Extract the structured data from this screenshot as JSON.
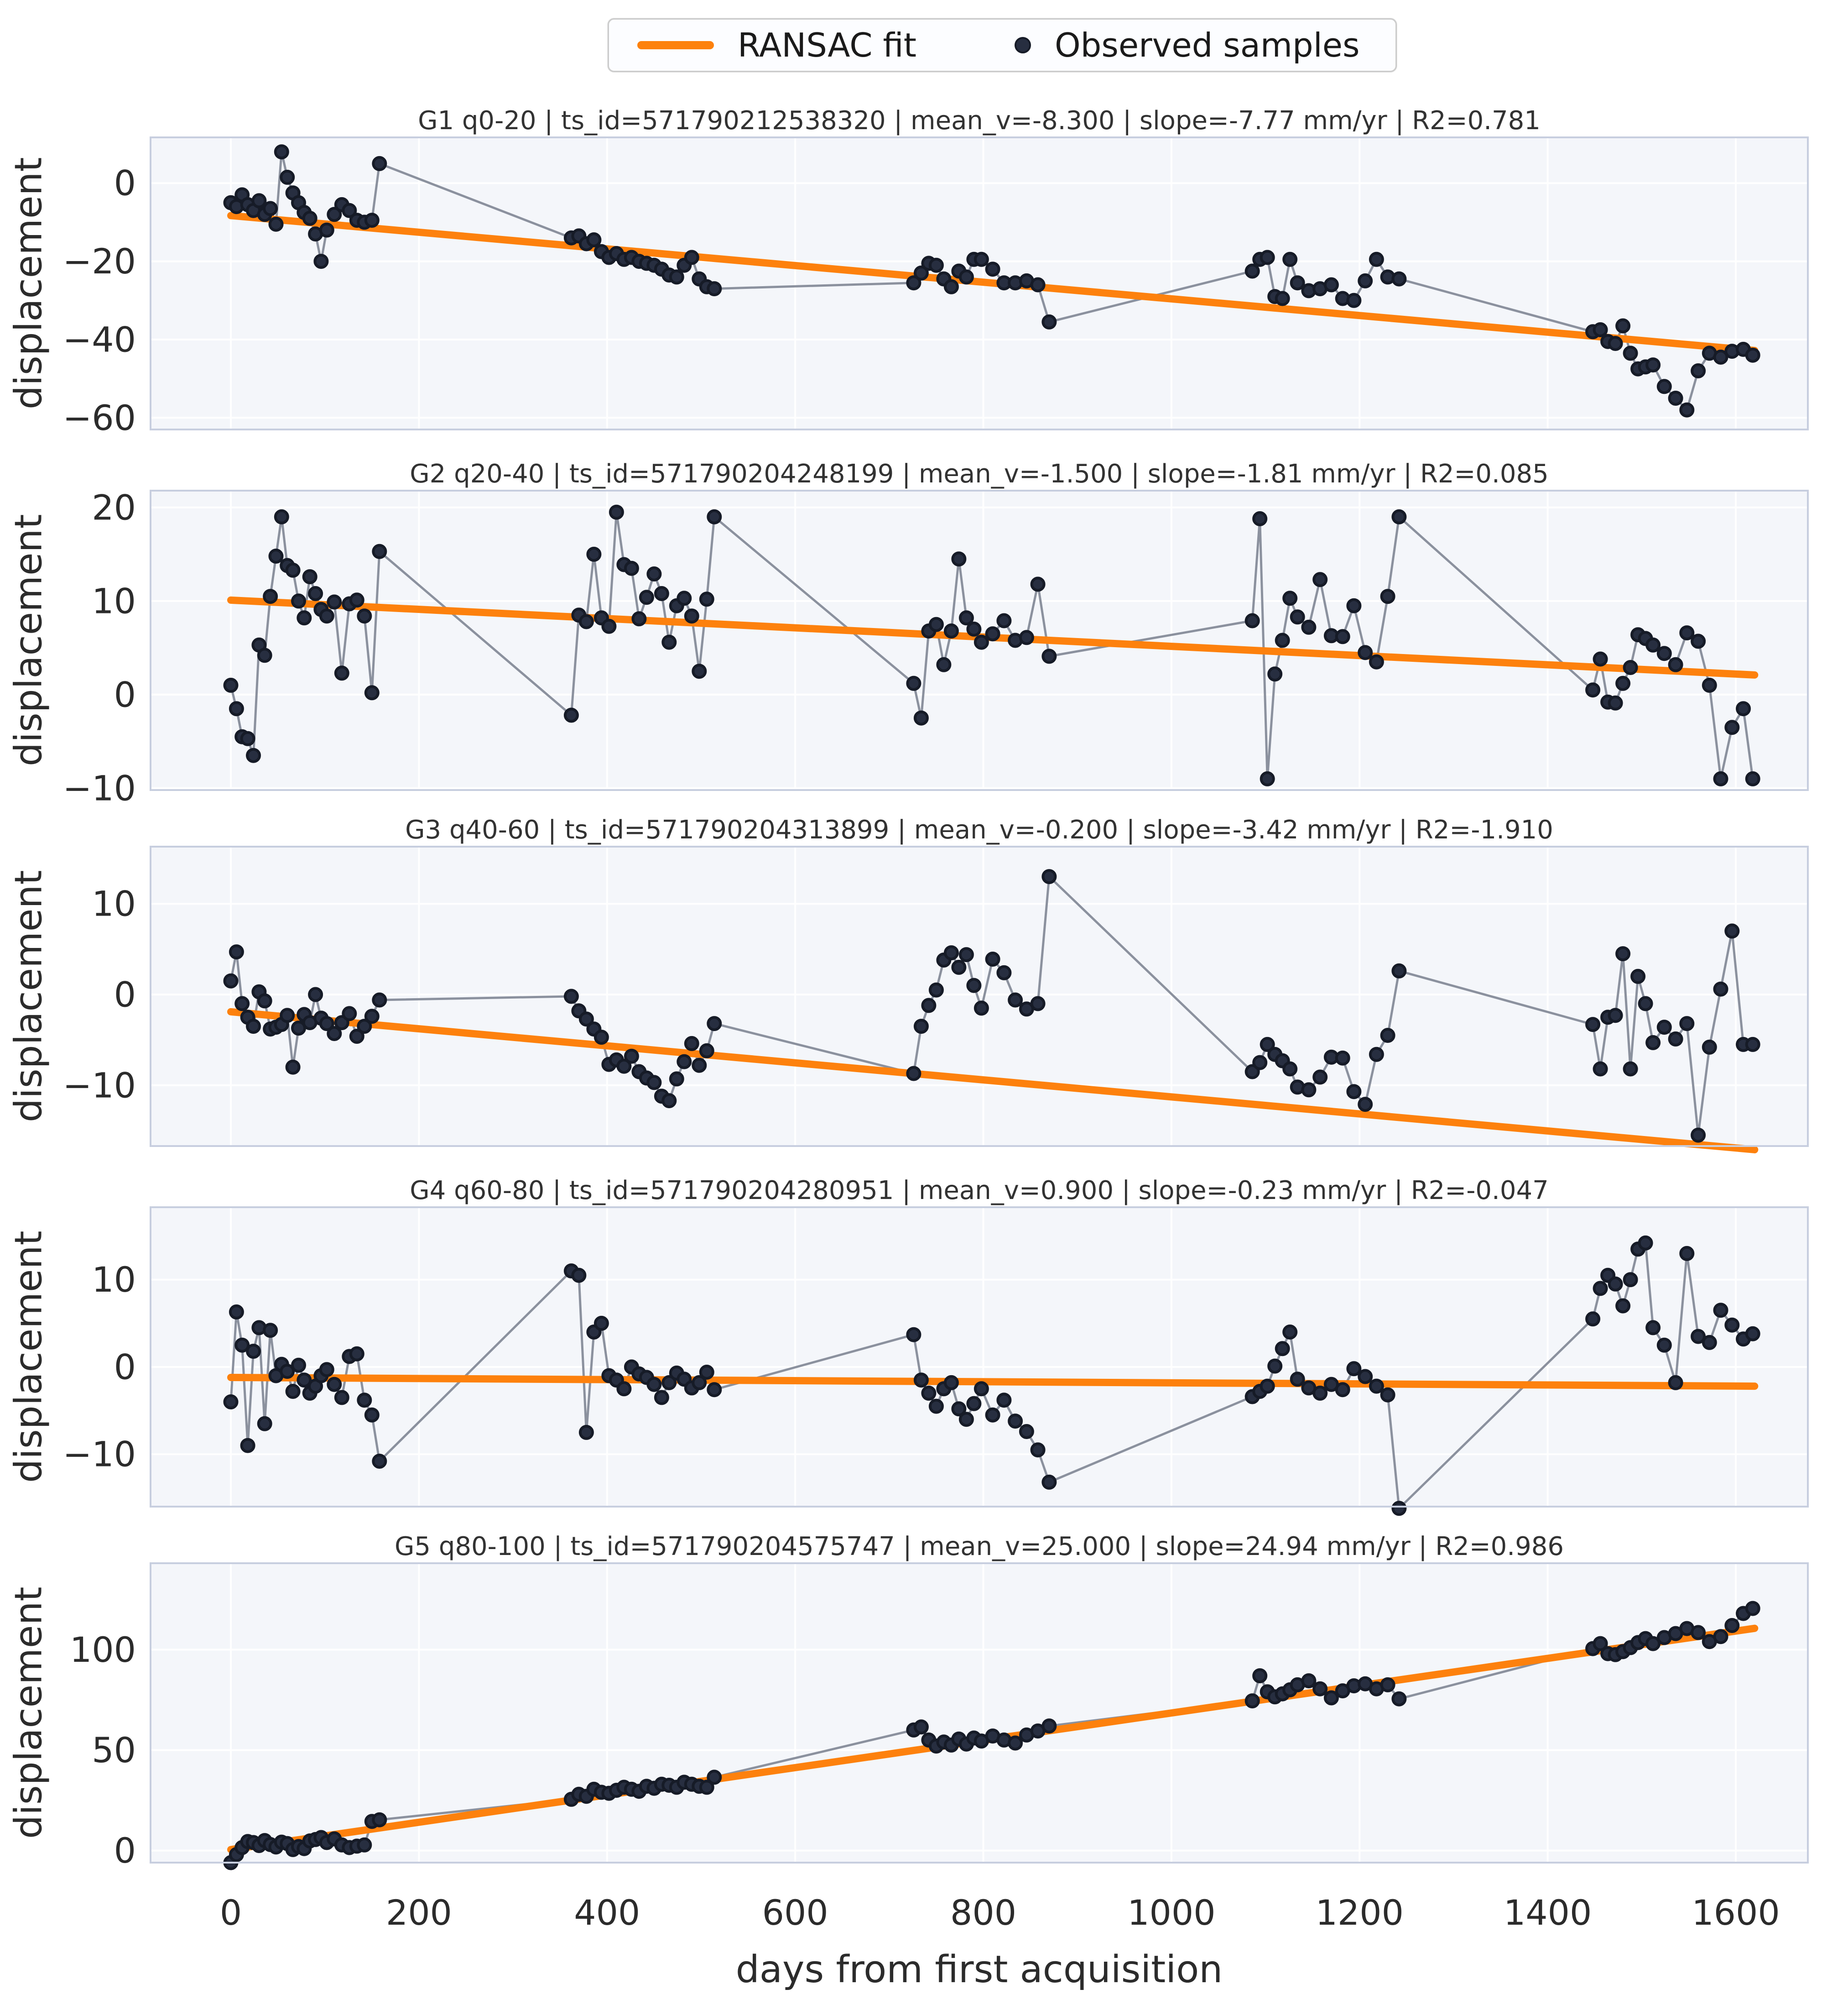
{
  "legend": {
    "items": [
      {
        "label": "RANSAC fit",
        "type": "line",
        "color": "#fd810d"
      },
      {
        "label": "Observed samples",
        "type": "dot",
        "color": "#272e40"
      }
    ]
  },
  "colors": {
    "ransac_line": "#fd810d",
    "marker_fill": "#272e40",
    "marker_edge": "#161b27",
    "connector_line": "#8b919e",
    "plot_background": "#f4f6fa",
    "grid": "#ffffff",
    "spine": "#c7cedf",
    "text": "#2b2b2b"
  },
  "chart_data": {
    "type": "scatter",
    "xlabel": "days from first acquisition",
    "ylabel": "displacement",
    "x_ticks": [
      0,
      200,
      400,
      600,
      800,
      1000,
      1200,
      1400,
      1600
    ],
    "xlim": [
      -85,
      1677
    ],
    "grid": true,
    "legend_position": "top-center",
    "days": [
      0,
      6,
      12,
      18,
      24,
      30,
      36,
      42,
      48,
      54,
      60,
      66,
      72,
      78,
      84,
      90,
      96,
      102,
      110,
      118,
      126,
      134,
      142,
      150,
      158,
      362,
      370,
      378,
      386,
      394,
      402,
      410,
      418,
      426,
      434,
      442,
      450,
      458,
      466,
      474,
      482,
      490,
      498,
      506,
      514,
      726,
      734,
      742,
      750,
      758,
      766,
      774,
      782,
      790,
      798,
      810,
      822,
      834,
      846,
      858,
      870,
      1086,
      1094,
      1102,
      1110,
      1118,
      1126,
      1134,
      1146,
      1158,
      1170,
      1182,
      1194,
      1206,
      1218,
      1230,
      1242,
      1448,
      1456,
      1464,
      1472,
      1480,
      1488,
      1496,
      1504,
      1512,
      1524,
      1536,
      1548,
      1560,
      1572,
      1584,
      1596,
      1608,
      1618
    ],
    "panels": [
      {
        "title": "G1 q0-20 | ts_id=571790212538320 | mean_v=-8.300 | slope=-7.77 mm/yr | R2=0.781",
        "mean_v": -8.3,
        "slope_mm_yr": -7.77,
        "r2": 0.781,
        "y_ticks": [
          0,
          -20,
          -40,
          -60
        ],
        "ylim": [
          -63,
          11.7
        ],
        "ransac": {
          "x": [
            0,
            1620
          ],
          "y": [
            -8.3,
            -42.8
          ]
        },
        "values": [
          -5,
          -6,
          -3,
          -5.5,
          -7,
          -4.5,
          -8,
          -6.5,
          -10.5,
          8,
          1.5,
          -2.5,
          -5,
          -7.5,
          -9,
          -13,
          -20,
          -12,
          -8,
          -5.5,
          -7,
          -9.5,
          -10,
          -9.5,
          5,
          -14,
          -13.5,
          -15.5,
          -14.5,
          -17.5,
          -19,
          -18,
          -19.5,
          -19,
          -20,
          -20.5,
          -21,
          -22,
          -23.5,
          -24,
          -21,
          -19,
          -24.5,
          -26.5,
          -27,
          -25.5,
          -23,
          -20.5,
          -21,
          -24.5,
          -26.5,
          -22.5,
          -24,
          -19.5,
          -19.5,
          -22,
          -25.5,
          -25.5,
          -25,
          -26,
          -35.5,
          -22.5,
          -19.5,
          -19,
          -29,
          -29.5,
          -19.5,
          -25.5,
          -27.5,
          -27,
          -26,
          -29.5,
          -30,
          -25,
          -19.5,
          -24,
          -24.5,
          -38,
          -37.5,
          -40.5,
          -41,
          -36.5,
          -43.5,
          -47.5,
          -47,
          -46.5,
          -52,
          -55,
          -58,
          -48,
          -43.5,
          -44.5,
          -43,
          -42.5,
          -44
        ]
      },
      {
        "title": "G2 q20-40 | ts_id=571790204248199 | mean_v=-1.500 | slope=-1.81 mm/yr | R2=0.085",
        "mean_v": -1.5,
        "slope_mm_yr": -1.81,
        "r2": 0.085,
        "y_ticks": [
          20,
          10,
          0,
          -10
        ],
        "ylim": [
          -10.2,
          21.8
        ],
        "ransac": {
          "x": [
            0,
            1620
          ],
          "y": [
            10.1,
            2.1
          ]
        },
        "values": [
          1,
          -1.5,
          -4.5,
          -4.7,
          -6.5,
          5.3,
          4.2,
          10.5,
          14.8,
          19,
          13.8,
          13.3,
          10,
          8.2,
          12.6,
          10.8,
          9.1,
          8.4,
          9.9,
          2.3,
          9.7,
          10.1,
          8.4,
          0.2,
          15.3,
          -2.2,
          8.5,
          7.8,
          15,
          8.2,
          7.3,
          19.5,
          13.9,
          13.5,
          8.1,
          10.4,
          12.9,
          10.8,
          5.6,
          9.5,
          10.3,
          8.4,
          2.5,
          10.2,
          19,
          1.2,
          -2.5,
          6.8,
          7.5,
          3.2,
          6.8,
          14.5,
          8.2,
          7.0,
          5.6,
          6.5,
          7.9,
          5.8,
          6.1,
          11.8,
          4.1,
          7.9,
          18.8,
          -9,
          2.2,
          5.8,
          10.3,
          8.3,
          7.2,
          12.3,
          6.3,
          6.2,
          9.5,
          4.5,
          3.5,
          10.5,
          19,
          0.5,
          3.8,
          -0.8,
          -0.9,
          1.2,
          2.9,
          6.4,
          6.0,
          5.3,
          4.4,
          3.2,
          6.6,
          5.7,
          1.0,
          -9,
          -3.5,
          -1.5,
          -9
        ]
      },
      {
        "title": "G3 q40-60 | ts_id=571790204313899 | mean_v=-0.200 | slope=-3.42 mm/yr | R2=-1.910",
        "mean_v": -0.2,
        "slope_mm_yr": -3.42,
        "r2": -1.91,
        "y_ticks": [
          10,
          0,
          -10
        ],
        "ylim": [
          -16.7,
          16.3
        ],
        "ransac": {
          "x": [
            0,
            1620
          ],
          "y": [
            -1.9,
            -17.1
          ]
        },
        "values": [
          1.5,
          4.7,
          -1,
          -2.5,
          -3.5,
          0.3,
          -0.7,
          -3.8,
          -3.6,
          -3.3,
          -2.3,
          -8,
          -3.7,
          -2.2,
          -3.1,
          0.0,
          -2.6,
          -3.2,
          -4.3,
          -3.1,
          -2.1,
          -4.6,
          -3.5,
          -2.4,
          -0.6,
          -0.2,
          -1.8,
          -2.7,
          -3.8,
          -4.7,
          -7.7,
          -7.2,
          -7.9,
          -6.8,
          -8.5,
          -9.2,
          -9.7,
          -11.2,
          -11.7,
          -9.3,
          -7.4,
          -5.4,
          -7.8,
          -6.2,
          -3.2,
          -8.7,
          -3.5,
          -1.2,
          0.5,
          3.8,
          4.6,
          3.0,
          4.4,
          1.0,
          -1.5,
          3.9,
          2.4,
          -0.6,
          -1.6,
          -1.0,
          13.0,
          -8.5,
          -7.5,
          -5.5,
          -6.6,
          -7.3,
          -8.2,
          -10.2,
          -10.5,
          -9.1,
          -6.9,
          -7.0,
          -10.7,
          -12.1,
          -6.6,
          -4.5,
          2.6,
          -3.3,
          -8.2,
          -2.5,
          -2.3,
          4.5,
          -8.2,
          2.0,
          -1.0,
          -5.3,
          -3.6,
          -4.9,
          -3.2,
          -15.5,
          -5.8,
          0.6,
          7.0,
          -5.5,
          -5.5
        ]
      },
      {
        "title": "G4 q60-80 | ts_id=571790204280951 | mean_v=0.900 | slope=-0.23 mm/yr | R2=-0.047",
        "mean_v": 0.9,
        "slope_mm_yr": -0.23,
        "r2": -0.047,
        "y_ticks": [
          10,
          0,
          -10
        ],
        "ylim": [
          -16.0,
          18.3
        ],
        "ransac": {
          "x": [
            0,
            1620
          ],
          "y": [
            -1.2,
            -2.2
          ]
        },
        "values": [
          -4,
          6.3,
          2.5,
          -9,
          1.8,
          4.5,
          -6.5,
          4.2,
          -1,
          0.3,
          -0.5,
          -2.8,
          0.2,
          -1.5,
          -3,
          -2.2,
          -1,
          -0.3,
          -2,
          -3.5,
          1.2,
          1.5,
          -3.8,
          -5.5,
          -10.8,
          11,
          10.5,
          -7.5,
          4,
          5,
          -1,
          -1.5,
          -2.5,
          0,
          -0.8,
          -1.2,
          -2,
          -3.5,
          -1.8,
          -0.7,
          -1.4,
          -2.4,
          -1.8,
          -0.6,
          -2.6,
          3.7,
          -1.5,
          -3,
          -4.5,
          -2.5,
          -1.8,
          -4.8,
          -6,
          -4.2,
          -2.5,
          -5.5,
          -3.8,
          -6.2,
          -7.4,
          -9.5,
          -13.2,
          -3.4,
          -2.8,
          -2.2,
          0.1,
          2.1,
          4.0,
          -1.4,
          -2.4,
          -3.0,
          -2.0,
          -2.6,
          -0.2,
          -1.1,
          -2.2,
          -3.2,
          -16.2,
          5.5,
          9.0,
          10.5,
          9.5,
          7.0,
          10.0,
          13.5,
          14.2,
          4.5,
          2.5,
          -1.8,
          13.0,
          3.5,
          2.8,
          6.5,
          4.8,
          3.2,
          3.8
        ]
      },
      {
        "title": "G5 q80-100 | ts_id=571790204575747 | mean_v=25.000 | slope=24.94 mm/yr | R2=0.986",
        "mean_v": 25.0,
        "slope_mm_yr": 24.94,
        "r2": 0.986,
        "y_ticks": [
          100,
          50,
          0
        ],
        "ylim": [
          -6,
          143
        ],
        "ransac": {
          "x": [
            0,
            1620
          ],
          "y": [
            0.5,
            110.6
          ]
        },
        "values": [
          -6,
          -2,
          1.5,
          4.5,
          4.0,
          2.5,
          5.0,
          3.0,
          1.8,
          4.2,
          3.5,
          0.5,
          2.0,
          1.0,
          4.8,
          5.5,
          6.5,
          4.0,
          5.8,
          2.8,
          1.5,
          2.2,
          2.8,
          14.5,
          15.3,
          25.5,
          28,
          27,
          30.5,
          29,
          28.5,
          30,
          31.5,
          30.5,
          29.5,
          32,
          31,
          33,
          32.5,
          31.5,
          34,
          33,
          32,
          31.5,
          36.5,
          60,
          61.5,
          55,
          52,
          54,
          52.5,
          55.5,
          53,
          56,
          54.5,
          57,
          55,
          53.5,
          57.5,
          59.5,
          62,
          74.5,
          87,
          79,
          76.5,
          78,
          80,
          82.5,
          84.5,
          80.5,
          76,
          79.5,
          82,
          83,
          80.5,
          82.5,
          75.5,
          100.5,
          103,
          98,
          97.5,
          99,
          101,
          103.5,
          105.5,
          103,
          106,
          108,
          110.5,
          108.5,
          104,
          106.5,
          112,
          118,
          120.5
        ]
      }
    ]
  }
}
